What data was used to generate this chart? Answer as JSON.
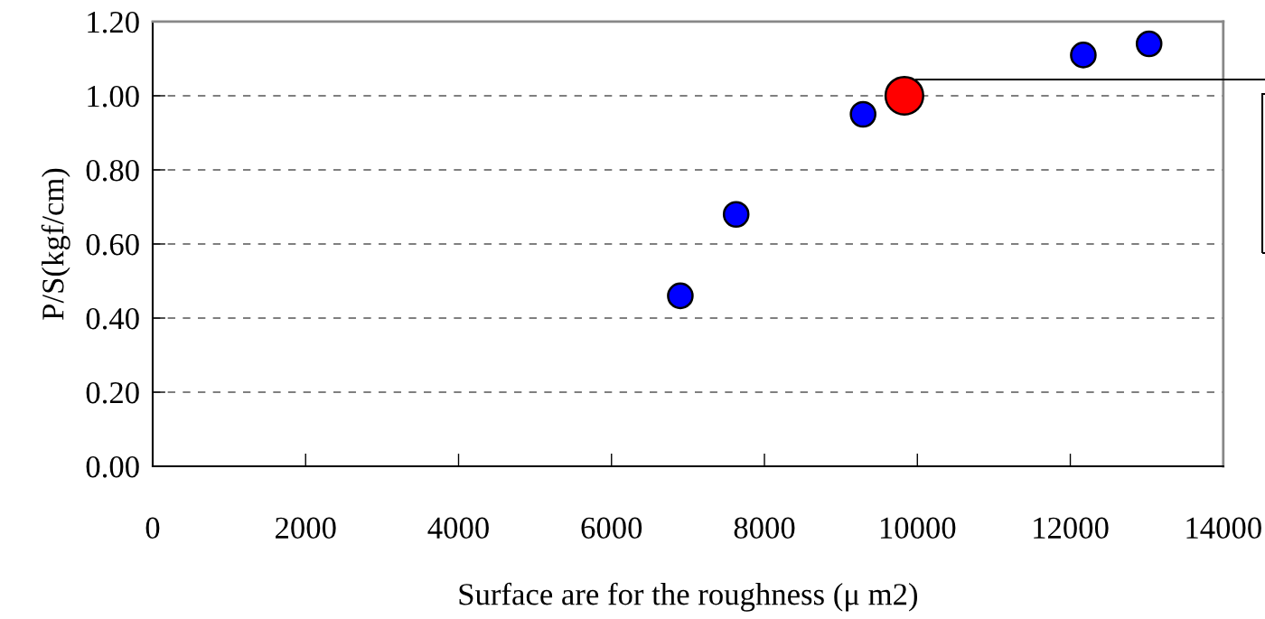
{
  "chart_data": {
    "type": "scatter",
    "xlabel": "Surface are for the roughness (μ m2)",
    "ylabel": "P/S(kgf/cm)",
    "xlim": [
      0,
      14000
    ],
    "xticks": [
      0,
      2000,
      4000,
      6000,
      8000,
      10000,
      12000,
      14000
    ],
    "ylim": [
      0,
      1.2
    ],
    "yticks": [
      {
        "value": 0,
        "label": "0.00"
      },
      {
        "value": 0.2,
        "label": "0.20"
      },
      {
        "value": 0.4,
        "label": "0.40"
      },
      {
        "value": 0.6,
        "label": "0.60"
      },
      {
        "value": 0.8,
        "label": "0.80"
      },
      {
        "value": 1.0,
        "label": "1.00"
      },
      {
        "value": 1.2,
        "label": "1.20"
      }
    ],
    "grid": "y",
    "marker": "circle",
    "series": [
      {
        "color": "#0000ff",
        "x": [
          6900,
          7630,
          9290,
          12170,
          13030
        ],
        "values": [
          0.46,
          0.68,
          0.95,
          1.11,
          1.14
        ]
      },
      {
        "color": "#ff0000",
        "x": [
          9830
        ],
        "values": [
          1.0
        ]
      }
    ]
  }
}
